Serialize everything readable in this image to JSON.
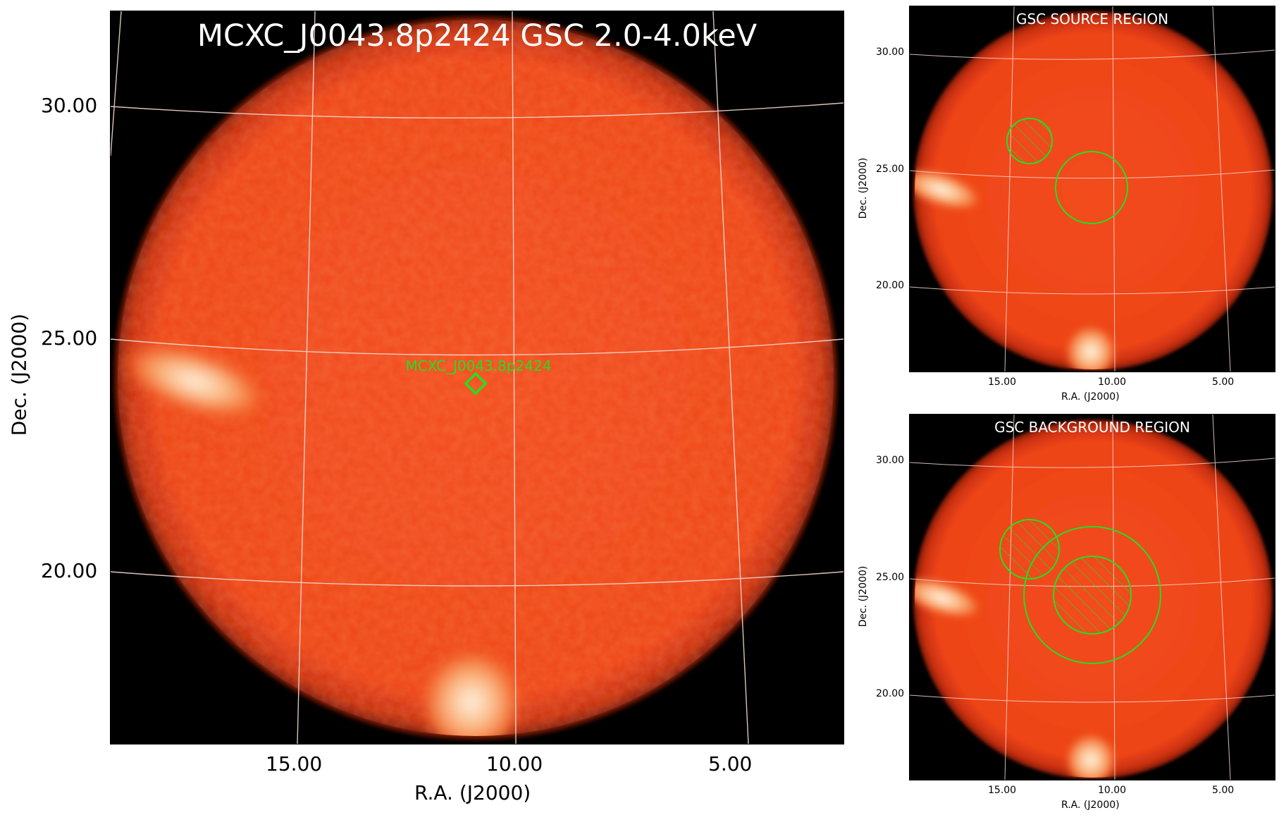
{
  "main": {
    "title": "MCXC_J0043.8p2424 GSC 2.0-4.0keV",
    "source_label": "MCXC_J0043.8p2424",
    "xlabel": "R.A. (J2000)",
    "ylabel": "Dec. (J2000)",
    "xticks": [
      "15.00",
      "10.00",
      "5.00"
    ],
    "yticks": [
      "30.00",
      "25.00",
      "20.00"
    ]
  },
  "source_panel": {
    "title": "GSC SOURCE REGION",
    "xlabel": "R.A. (J2000)",
    "ylabel": "Dec. (J2000)",
    "xticks": [
      "15.00",
      "10.00",
      "5.00"
    ],
    "yticks": [
      "30.00",
      "25.00",
      "20.00"
    ]
  },
  "background_panel": {
    "title": "GSC BACKGROUND REGION",
    "xlabel": "R.A. (J2000)",
    "ylabel": "Dec. (J2000)",
    "xticks": [
      "15.00",
      "10.00",
      "5.00"
    ],
    "yticks": [
      "30.00",
      "25.00",
      "20.00"
    ]
  },
  "colors": {
    "field": "#f0451a",
    "field_edge": "#d93510",
    "region": "#22e022",
    "grid": "#ffffff",
    "bright_source": "#fff1dc"
  }
}
